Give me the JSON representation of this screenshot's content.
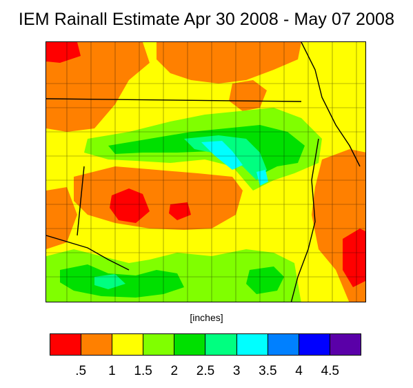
{
  "title": "IEM Rainall Estimate Apr 30 2008 - May 07 2008",
  "units_label": "[inches]",
  "legend": {
    "colors": [
      "#ff0000",
      "#ff8000",
      "#ffff00",
      "#80ff00",
      "#00e000",
      "#00ff80",
      "#00ffff",
      "#0080ff",
      "#0000ff",
      "#5a00a8"
    ],
    "tick_labels": [
      ".5",
      "1",
      "1.5",
      "2",
      "2.5",
      "3",
      "3.5",
      "4",
      "4.5"
    ]
  }
}
